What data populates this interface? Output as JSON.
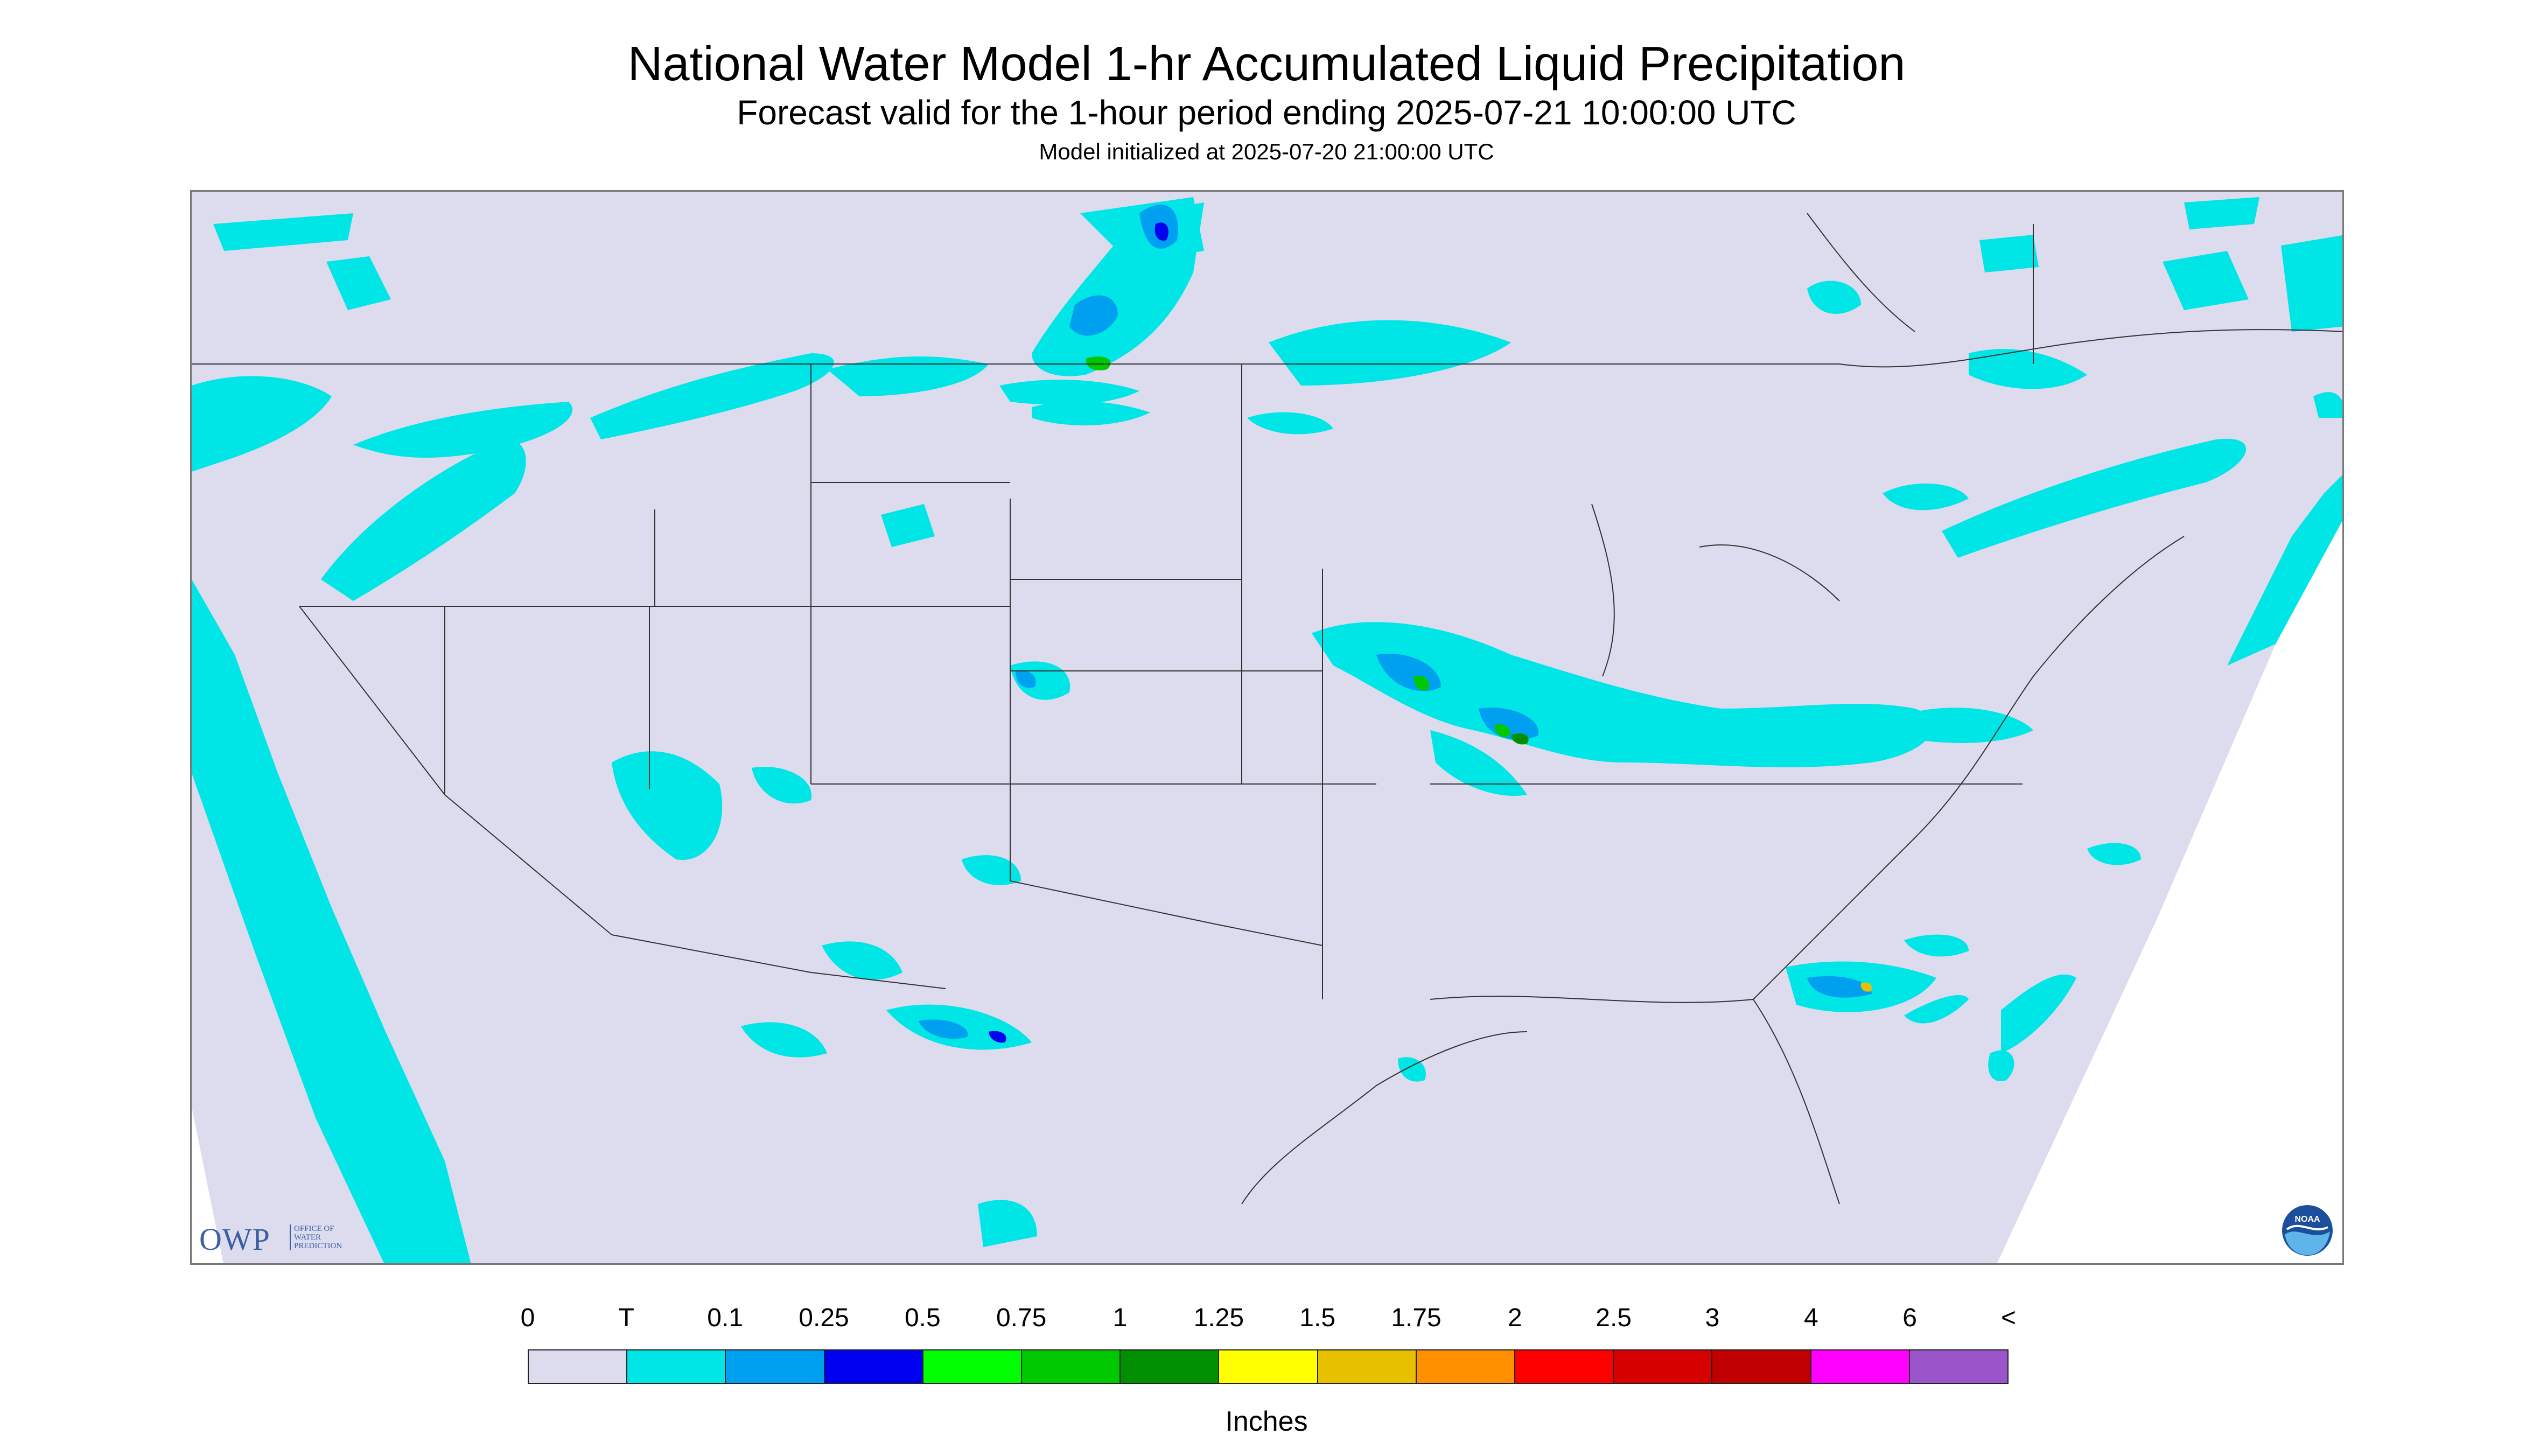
{
  "title": "National Water Model 1-hr Accumulated Liquid Precipitation",
  "subtitle": "Forecast valid for the 1-hour period ending 2025-07-21 10:00:00 UTC",
  "init": "Model initialized at 2025-07-20 21:00:00 UTC",
  "logos": {
    "owp_big": "OWP",
    "owp_small": [
      "OFFICE OF",
      "WATER",
      "PREDICTION"
    ],
    "noaa": "NOAA"
  },
  "legend": {
    "units": "Inches",
    "labels": [
      "0",
      "T",
      "0.1",
      "0.25",
      "0.5",
      "0.75",
      "1",
      "1.25",
      "1.5",
      "1.75",
      "2",
      "2.5",
      "3",
      "4",
      "6",
      "<"
    ],
    "colors": [
      "#dcdcee",
      "#00e5e5",
      "#00a0f0",
      "#0000f0",
      "#00ff00",
      "#00c800",
      "#008f00",
      "#ffff00",
      "#e7c000",
      "#ff9000",
      "#ff0000",
      "#d60000",
      "#c00000",
      "#ff00ff",
      "#9955c9"
    ]
  },
  "map_colors": {
    "background": "#dcdcee",
    "outside": "#ffffff",
    "trace": "#00e5e5",
    "light": "#00a0f0",
    "moderate": "#0000f0",
    "green": "#00c800",
    "borders": "#333333"
  }
}
